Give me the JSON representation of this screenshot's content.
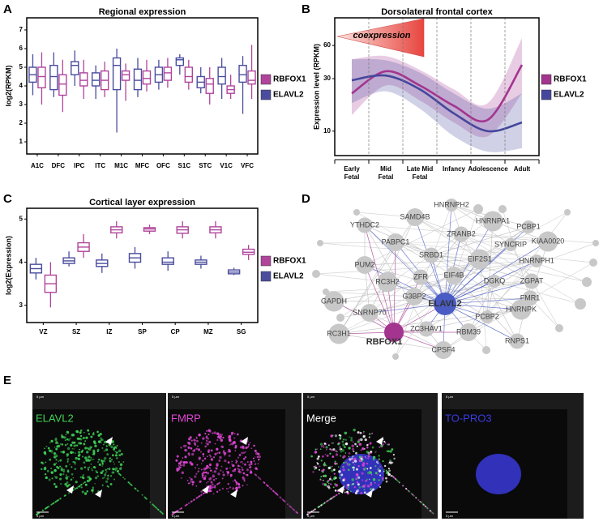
{
  "panel_labels": [
    "A",
    "B",
    "C",
    "D",
    "E"
  ],
  "chart_data": [
    {
      "type": "box",
      "title": "Regional expression",
      "y_label": "log2(RPKM)",
      "categories": [
        "A1C",
        "DFC",
        "IPC",
        "ITC",
        "M1C",
        "MFC",
        "OFC",
        "S1C",
        "STC",
        "V1C",
        "VFC"
      ],
      "ylim": [
        0.35,
        7.65
      ],
      "yticks": [
        1,
        2,
        3,
        4,
        5,
        6,
        7
      ],
      "series": [
        {
          "name": "RBFOX1",
          "color": "#b0449b",
          "min": [
            3.0,
            2.6,
            3.3,
            3.4,
            3.2,
            3.7,
            3.9,
            3.8,
            3.0,
            3.3,
            3.3
          ],
          "q1": [
            3.9,
            3.5,
            4.0,
            3.8,
            4.3,
            4.1,
            4.3,
            4.2,
            3.6,
            3.6,
            4.1
          ],
          "median": [
            4.5,
            4.1,
            4.3,
            4.3,
            4.6,
            4.4,
            4.7,
            4.5,
            4.1,
            3.8,
            4.3
          ],
          "q3": [
            5.0,
            4.6,
            4.7,
            4.8,
            4.8,
            4.8,
            5.0,
            5.0,
            4.4,
            4.0,
            4.8
          ],
          "max": [
            5.8,
            5.4,
            5.4,
            5.3,
            5.2,
            5.4,
            5.5,
            5.4,
            5.0,
            4.6,
            6.2
          ]
        },
        {
          "name": "ELAVL2",
          "color": "#4a4c9e",
          "min": [
            3.5,
            3.4,
            4.0,
            3.3,
            1.5,
            3.4,
            3.8,
            4.6,
            3.6,
            3.3,
            2.5
          ],
          "q1": [
            4.2,
            3.8,
            4.6,
            4.0,
            3.8,
            3.8,
            4.2,
            5.1,
            3.9,
            4.1,
            4.2
          ],
          "median": [
            4.6,
            4.5,
            5.1,
            4.3,
            5.1,
            4.3,
            4.6,
            5.4,
            4.2,
            4.5,
            4.6
          ],
          "q3": [
            5.0,
            5.1,
            5.3,
            4.7,
            5.5,
            4.9,
            5.0,
            5.5,
            4.5,
            5.0,
            5.1
          ],
          "max": [
            5.7,
            5.8,
            5.9,
            5.1,
            6.0,
            5.5,
            5.4,
            5.7,
            5.0,
            5.5,
            5.6
          ]
        }
      ]
    },
    {
      "type": "line",
      "title": "Dorsolateral frontal cortex",
      "y_label": "Expression level (RPKM)",
      "categories": [
        "Early Fetal",
        "Mid Fetal",
        "Late Mid Fetal",
        "Infancy",
        "Adolescence",
        "Adult"
      ],
      "ylim": [
        6,
        107
      ],
      "yticks": [
        10,
        30,
        60
      ],
      "log_y": true,
      "annotation": "coexpression",
      "series": [
        {
          "name": "RBFOX1",
          "color": "#a3358f",
          "values": [
            22,
            35,
            26,
            17,
            12.7,
            40
          ],
          "lower": [
            14,
            26,
            19,
            12,
            9,
            22
          ],
          "upper": [
            45,
            48,
            36,
            24,
            18,
            70
          ]
        },
        {
          "name": "ELAVL2",
          "color": "#45479c",
          "values": [
            29,
            32,
            24,
            14.5,
            10,
            12
          ],
          "lower": [
            18,
            23,
            16,
            9,
            6.5,
            7
          ],
          "upper": [
            45,
            44,
            34,
            22,
            16,
            22
          ]
        }
      ]
    },
    {
      "type": "box",
      "title": "Cortical layer expression",
      "y_label": "log2(Expression)",
      "categories": [
        "VZ",
        "SZ",
        "IZ",
        "SP",
        "CP",
        "MZ",
        "SG"
      ],
      "ylim": [
        2.6,
        5.25
      ],
      "yticks": [
        3,
        4,
        5
      ],
      "series": [
        {
          "name": "RBFOX1",
          "color": "#b0449b",
          "min": [
            2.95,
            4.1,
            4.55,
            4.65,
            4.55,
            4.55,
            4.05
          ],
          "q1": [
            3.3,
            4.25,
            4.68,
            4.72,
            4.67,
            4.68,
            4.18
          ],
          "median": [
            3.5,
            4.35,
            4.75,
            4.77,
            4.75,
            4.75,
            4.23
          ],
          "q3": [
            3.7,
            4.45,
            4.82,
            4.8,
            4.82,
            4.82,
            4.3
          ],
          "max": [
            4.0,
            4.65,
            4.95,
            4.87,
            4.95,
            4.95,
            4.4
          ]
        },
        {
          "name": "ELAVL2",
          "color": "#4a4c9e",
          "min": [
            3.6,
            3.9,
            3.75,
            3.85,
            3.8,
            3.85,
            3.7
          ],
          "q1": [
            3.75,
            3.97,
            3.9,
            4.0,
            3.95,
            3.95,
            3.73
          ],
          "median": [
            3.85,
            4.03,
            3.97,
            4.1,
            4.0,
            4.0,
            3.77
          ],
          "q3": [
            3.95,
            4.1,
            4.05,
            4.2,
            4.1,
            4.05,
            3.82
          ],
          "max": [
            4.1,
            4.25,
            4.2,
            4.35,
            4.25,
            4.15,
            3.87
          ]
        }
      ]
    }
  ],
  "network": {
    "nodes": [
      "HNRNPH2",
      "YTHDC2",
      "SAMD4B",
      "HNRNPA1",
      "PCBP1",
      "ZRANB2",
      "PABPC1",
      "KIAA0020",
      "SYNCRIP",
      "SRBD1",
      "PUM2",
      "EIF2S1",
      "HNRNPH1",
      "ZFR",
      "EIF4B",
      "RC3H2",
      "DGKQ",
      "ZGPAT",
      "G3BP2",
      "GAPDH",
      "ELAVL2",
      "FMR1",
      "SNRNP70",
      "HNRNPK",
      "PCBP2",
      "ZC3HAV1",
      "RBM39",
      "RC3H1",
      "RBFOX1",
      "RNPS1",
      "CPSF4"
    ]
  },
  "images": {
    "scale_bar": "5 μm",
    "panels": [
      {
        "label": "ELAVL2",
        "color": "#3fd257"
      },
      {
        "label": "FMRP",
        "color": "#e046d6"
      },
      {
        "label": "Merge",
        "color": "#ffffff"
      },
      {
        "label": "TO-PRO3",
        "color": "#3b3be6"
      }
    ]
  }
}
